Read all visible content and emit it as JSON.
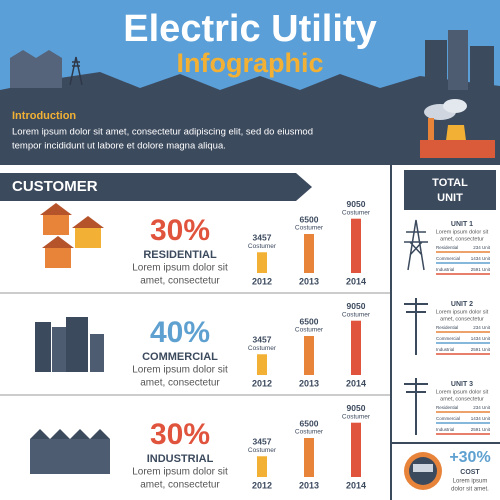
{
  "header": {
    "title": "Electric Utility",
    "subtitle": "Infographic",
    "intro_heading": "Introduction",
    "intro_lines": [
      "Lorem ipsum dolor sit amet, consectetur adipiscing elit, sed do eiusmod",
      "tempor incididunt ut labore et dolore magna aliqua."
    ]
  },
  "customer": {
    "heading": "CUSTOMER",
    "rows": [
      {
        "percent": "30%",
        "color": "#e0533c",
        "label": "RESIDENTIAL",
        "text_lines": [
          "Lorem ipsum dolor sit",
          "amet, consectetur"
        ],
        "bars": [
          {
            "value": 3457,
            "unit": "Costumer",
            "year": 2012,
            "color": "#f2b134"
          },
          {
            "value": 6500,
            "unit": "Costumer",
            "year": 2013,
            "color": "#e8833a"
          },
          {
            "value": 9050,
            "unit": "Costumer",
            "year": 2014,
            "color": "#e0533c"
          }
        ]
      },
      {
        "percent": "40%",
        "color": "#5ea0d0",
        "label": "COMMERCIAL",
        "text_lines": [
          "Lorem ipsum dolor sit",
          "amet, consectetur"
        ],
        "bars": [
          {
            "value": 3457,
            "unit": "Costumer",
            "year": 2012,
            "color": "#f2b134"
          },
          {
            "value": 6500,
            "unit": "Costumer",
            "year": 2013,
            "color": "#e8833a"
          },
          {
            "value": 9050,
            "unit": "Costumer",
            "year": 2014,
            "color": "#e0533c"
          }
        ]
      },
      {
        "percent": "30%",
        "color": "#e0533c",
        "label": "INDUSTRIAL",
        "text_lines": [
          "Lorem ipsum dolor sit",
          "amet, consectetur"
        ],
        "bars": [
          {
            "value": 3457,
            "unit": "Costumer",
            "year": 2012,
            "color": "#f2b134"
          },
          {
            "value": 6500,
            "unit": "Costumer",
            "year": 2013,
            "color": "#e8833a"
          },
          {
            "value": 9050,
            "unit": "Costumer",
            "year": 2014,
            "color": "#e0533c"
          }
        ]
      }
    ]
  },
  "total_unit": {
    "heading_lines": [
      "TOTAL",
      "UNIT"
    ],
    "units": [
      {
        "name": "UNIT 1",
        "text_lines": [
          "Lorem ipsum dolor sit",
          "amet, consectetur"
        ],
        "items": [
          {
            "label": "Residential",
            "value": "234 Unit"
          },
          {
            "label": "Commercial",
            "value": "1434 Unit"
          },
          {
            "label": "Industrial",
            "value": "2591 Unit"
          }
        ]
      },
      {
        "name": "UNIT 2",
        "text_lines": [
          "Lorem ipsum dolor sit",
          "amet, consectetur"
        ],
        "items": [
          {
            "label": "Residential",
            "value": "234 Unit"
          },
          {
            "label": "Commercial",
            "value": "1434 Unit"
          },
          {
            "label": "Industrial",
            "value": "2591 Unit"
          }
        ]
      },
      {
        "name": "UNIT 3",
        "text_lines": [
          "Lorem ipsum dolor sit",
          "amet, consectetur"
        ],
        "items": [
          {
            "label": "Residential",
            "value": "234 Unit"
          },
          {
            "label": "Commercial",
            "value": "1434 Unit"
          },
          {
            "label": "Industrial",
            "value": "2591 Unit"
          }
        ]
      }
    ]
  },
  "cost": {
    "value": "+30%",
    "label": "COST",
    "text_lines": [
      "Lorem ipsum",
      "dolor sit amet."
    ]
  }
}
